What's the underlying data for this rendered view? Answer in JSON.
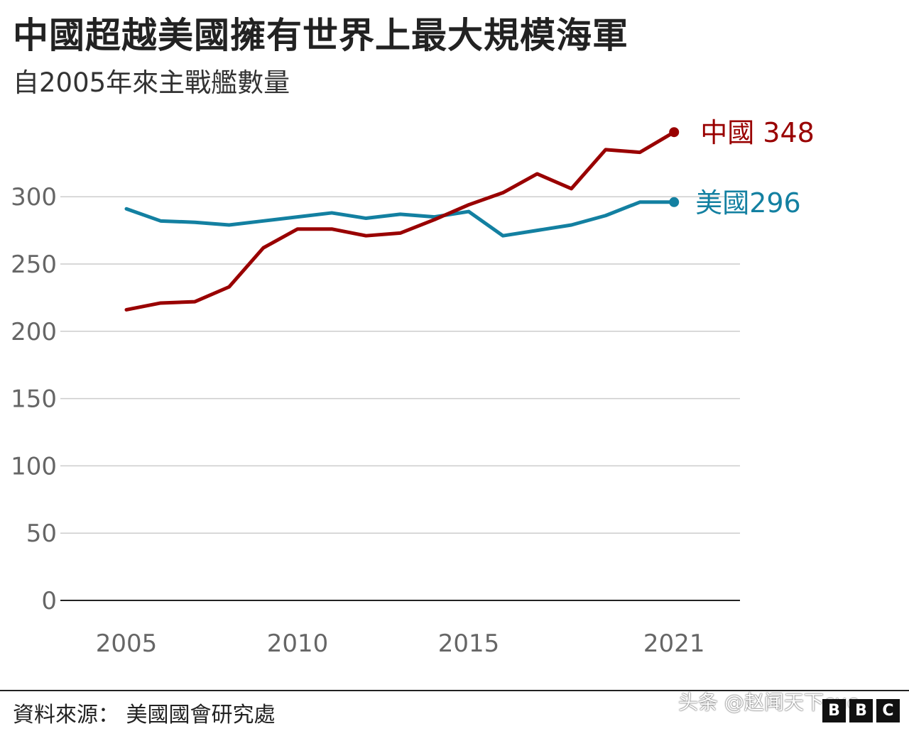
{
  "title": "中國超越美國擁有世界上最大規模海軍",
  "subtitle": "自2005年來主戰艦數量",
  "source": "資料來源： 美國國會研究處",
  "watermark": "头条 @赵闻天下cuc",
  "logo": [
    "B",
    "B",
    "C"
  ],
  "colors": {
    "china": "#990000",
    "usa": "#1380a1",
    "grid": "#cccccc",
    "baseline": "#222222",
    "tick": "#666666"
  },
  "chart_data": {
    "type": "line",
    "x": [
      2005,
      2006,
      2007,
      2008,
      2009,
      2010,
      2011,
      2012,
      2013,
      2014,
      2015,
      2016,
      2017,
      2018,
      2019,
      2020,
      2021
    ],
    "series": [
      {
        "name": "中國",
        "key": "china",
        "end_label": "中國 348",
        "values": [
          216,
          221,
          222,
          233,
          262,
          276,
          276,
          271,
          273,
          283,
          294,
          303,
          317,
          306,
          335,
          333,
          348
        ]
      },
      {
        "name": "美國",
        "key": "usa",
        "end_label": "美國296",
        "values": [
          291,
          282,
          281,
          279,
          282,
          285,
          288,
          284,
          287,
          285,
          289,
          271,
          275,
          279,
          286,
          296,
          296
        ]
      }
    ],
    "xticks": [
      {
        "value": 2005,
        "label": "2005"
      },
      {
        "value": 2010,
        "label": "2010"
      },
      {
        "value": 2015,
        "label": "2015"
      },
      {
        "value": 2021,
        "label": "2021"
      }
    ],
    "yticks": [
      0,
      50,
      100,
      150,
      200,
      250,
      300
    ],
    "ylim": [
      0,
      350
    ],
    "xlim": [
      2005,
      2021
    ],
    "grid": true
  }
}
